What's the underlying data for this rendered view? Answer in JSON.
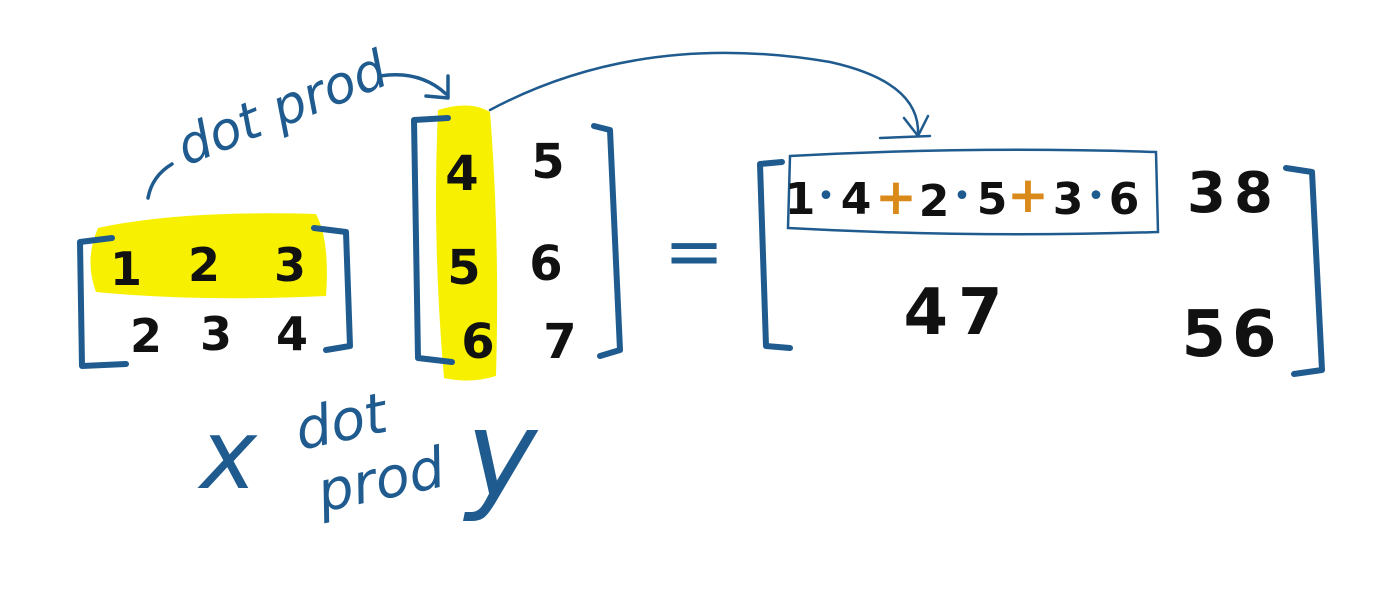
{
  "colors": {
    "ink_blue": "#1f5b8e",
    "ink_black": "#111111",
    "highlight_yellow": "#f7f000",
    "operator_orange": "#d98a1a",
    "background": "#ffffff"
  },
  "matrix_x": {
    "rows": [
      [
        "1",
        "2",
        "3"
      ],
      [
        "2",
        "3",
        "4"
      ]
    ],
    "highlighted_row": 0
  },
  "matrix_y": {
    "rows": [
      [
        "4",
        "5"
      ],
      [
        "5",
        "6"
      ],
      [
        "6",
        "7"
      ]
    ],
    "highlighted_column": 0
  },
  "equals_sign": "=",
  "result": {
    "first_entry_expression": {
      "terms": [
        "1",
        "4",
        "2",
        "5",
        "3",
        "6"
      ],
      "multiply_symbol": "•",
      "add_symbol": "+"
    },
    "entries": {
      "r0c1": "38",
      "r1c0": "47",
      "r1c1": "56"
    }
  },
  "annotations": {
    "dot_prod_top": "dot prod",
    "label_x": "x",
    "dot_prod_bottom_line1": "dot",
    "dot_prod_bottom_line2": "prod",
    "label_y": "y"
  }
}
